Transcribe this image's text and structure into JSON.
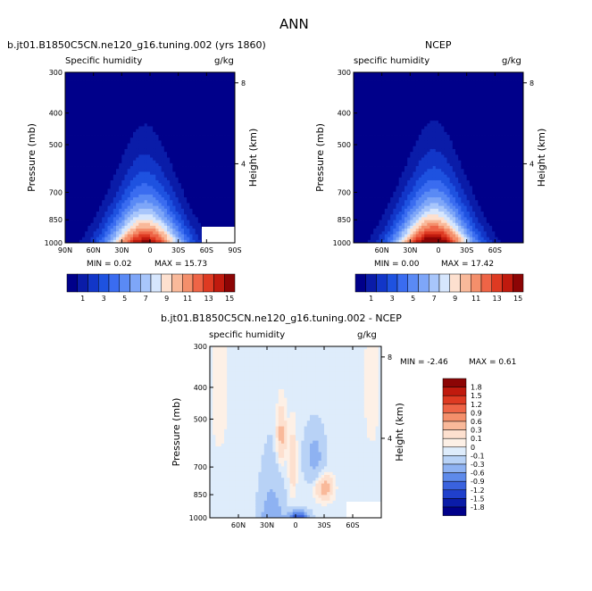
{
  "figure": {
    "main_title": "ANN",
    "model_title": "b.jt01.B1850C5CN.ne120_g16.tuning.002 (yrs 1860)",
    "obs_title": "NCEP",
    "diff_title": "b.jt01.B1850C5CN.ne120_g16.tuning.002 - NCEP"
  },
  "chart_data": [
    {
      "id": "model",
      "type": "contour",
      "title": "b.jt01.B1850C5CN.ne120_g16.tuning.002 (yrs 1860)",
      "left_label": "Specific humidity",
      "right_label": "g/kg",
      "ylabel": "Pressure (mb)",
      "y2label": "Height (km)",
      "xlim": [
        90,
        -90
      ],
      "ylim": [
        1000,
        300
      ],
      "x_ticks": [
        {
          "v": 90,
          "label": "90N"
        },
        {
          "v": 60,
          "label": "60N"
        },
        {
          "v": 30,
          "label": "30N"
        },
        {
          "v": 0,
          "label": "0"
        },
        {
          "v": -30,
          "label": "30S"
        },
        {
          "v": -60,
          "label": "60S"
        },
        {
          "v": -90,
          "label": "90S"
        }
      ],
      "y_ticks": [
        300,
        400,
        500,
        700,
        850,
        1000
      ],
      "y2_ticks": [
        {
          "km": 4,
          "label": "4"
        },
        {
          "km": 8,
          "label": "8"
        }
      ],
      "min_text": "MIN =    0.02",
      "max_text": "MAX =   15.73",
      "min": 0.02,
      "max": 15.73,
      "contour_levels": [
        1,
        2,
        3,
        4,
        5,
        6,
        7,
        8,
        9,
        10,
        11,
        12,
        13,
        14,
        15
      ],
      "tropical_peak": {
        "lat": 5,
        "p": 1000,
        "value": 15.73
      }
    },
    {
      "id": "obs",
      "type": "contour",
      "title": "NCEP",
      "left_label": "specific humidity",
      "right_label": "g/kg",
      "ylabel": "Pressure (mb)",
      "y2label": "Height (km)",
      "xlim": [
        90,
        -90
      ],
      "ylim": [
        1000,
        300
      ],
      "x_ticks": [
        {
          "v": 60,
          "label": "60N"
        },
        {
          "v": 30,
          "label": "30N"
        },
        {
          "v": 0,
          "label": "0"
        },
        {
          "v": -30,
          "label": "30S"
        },
        {
          "v": -60,
          "label": "60S"
        }
      ],
      "y_ticks": [
        300,
        400,
        500,
        700,
        850,
        1000
      ],
      "y2_ticks": [
        {
          "km": 4,
          "label": "4"
        },
        {
          "km": 8,
          "label": "8"
        }
      ],
      "min_text": "MIN =    0.00",
      "max_text": "MAX =   17.42",
      "min": 0.0,
      "max": 17.42,
      "contour_levels": [
        1,
        2,
        3,
        4,
        5,
        6,
        7,
        8,
        9,
        10,
        11,
        12,
        13,
        14,
        15
      ],
      "tropical_peak": {
        "lat": 5,
        "p": 1000,
        "value": 17.42
      }
    },
    {
      "id": "diff",
      "type": "contour",
      "title": "b.jt01.B1850C5CN.ne120_g16.tuning.002 - NCEP",
      "left_label": "specific humidity",
      "right_label": "g/kg",
      "ylabel": "Pressure (mb)",
      "y2label": "Height (km)",
      "xlim": [
        90,
        -90
      ],
      "ylim": [
        1000,
        300
      ],
      "x_ticks": [
        {
          "v": 60,
          "label": "60N"
        },
        {
          "v": 30,
          "label": "30N"
        },
        {
          "v": 0,
          "label": "0"
        },
        {
          "v": -30,
          "label": "30S"
        },
        {
          "v": -60,
          "label": "60S"
        }
      ],
      "y_ticks": [
        300,
        400,
        500,
        700,
        850,
        1000
      ],
      "y2_ticks": [
        {
          "km": 4,
          "label": "4"
        },
        {
          "km": 8,
          "label": "8"
        }
      ],
      "min_text": "MIN =   -2.46",
      "max_text": "MAX =    0.61",
      "min": -2.46,
      "max": 0.61,
      "contour_levels": [
        -1.8,
        -1.5,
        -1.2,
        -0.9,
        -0.6,
        -0.3,
        -0.1,
        0,
        0.1,
        0.3,
        0.6,
        0.9,
        1.2,
        1.5,
        1.8
      ]
    }
  ],
  "colorbars": {
    "abs": {
      "labels": [
        "1",
        "3",
        "5",
        "7",
        "9",
        "11",
        "13",
        "15"
      ],
      "colors": [
        "#00008a",
        "#0a1ca8",
        "#1236c8",
        "#1e52e0",
        "#3a6cf0",
        "#5a8af5",
        "#7ea6f8",
        "#a8c6fb",
        "#d6e6fd",
        "#fde0cf",
        "#f9b99a",
        "#f48f6b",
        "#ee6446",
        "#de3a22",
        "#c01a0e",
        "#8c0505"
      ]
    },
    "diff": {
      "labels": [
        "1.8",
        "1.5",
        "1.2",
        "0.9",
        "0.6",
        "0.3",
        "0.1",
        "0",
        "-0.1",
        "-0.3",
        "-0.6",
        "-0.9",
        "-1.2",
        "-1.5",
        "-1.8"
      ],
      "colors": [
        "#8c0505",
        "#c01a0e",
        "#de3a22",
        "#ee6446",
        "#f48f6b",
        "#f9b99a",
        "#fde0cf",
        "#fdf0e6",
        "#deecfb",
        "#b8d2f6",
        "#8eb2f2",
        "#5e8aea",
        "#3a62de",
        "#2040cc",
        "#0a1ca8",
        "#00008a"
      ]
    }
  }
}
